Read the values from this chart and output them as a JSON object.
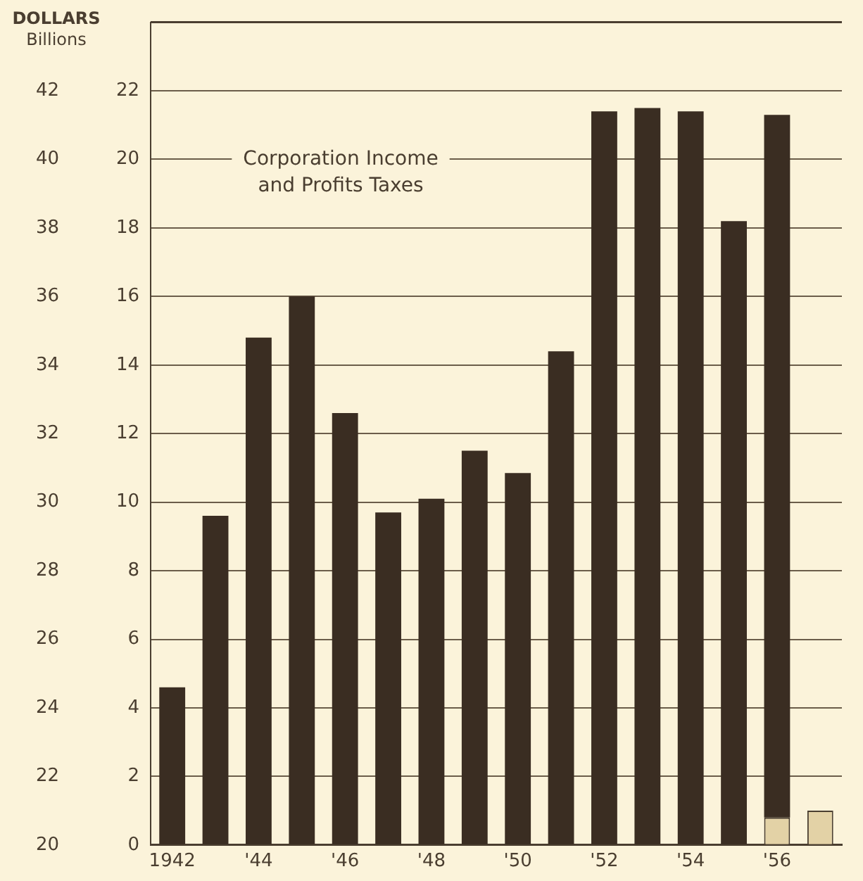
{
  "chart_data": {
    "type": "bar",
    "title": "Corporation Income\nand Profits Taxes",
    "y2label": "DOLLARS\nBillions",
    "categories": [
      "1942",
      null,
      "'44",
      null,
      "'46",
      null,
      "'48",
      null,
      "'50",
      null,
      "'52",
      null,
      "'54",
      null,
      "'56",
      null
    ],
    "stacked": true,
    "series": [
      {
        "color": "#e3d2a6",
        "values": [
          null,
          null,
          null,
          null,
          null,
          null,
          null,
          null,
          null,
          null,
          null,
          null,
          null,
          null,
          0.8,
          1.0
        ]
      },
      {
        "color": "#3a2d22",
        "values": [
          4.6,
          9.6,
          14.8,
          16.0,
          12.6,
          9.7,
          10.1,
          11.5,
          10.85,
          14.4,
          21.4,
          21.5,
          21.4,
          18.2,
          20.5,
          null
        ]
      }
    ],
    "ylim": [
      0,
      24
    ],
    "yticks": [
      0,
      2,
      4,
      6,
      8,
      10,
      12,
      14,
      16,
      18,
      20,
      22
    ],
    "y2lim": [
      20,
      44
    ],
    "y2ticks": [
      20,
      22,
      24,
      26,
      28,
      30,
      32,
      34,
      36,
      38,
      40,
      42
    ],
    "grid": "y",
    "legend": false
  }
}
